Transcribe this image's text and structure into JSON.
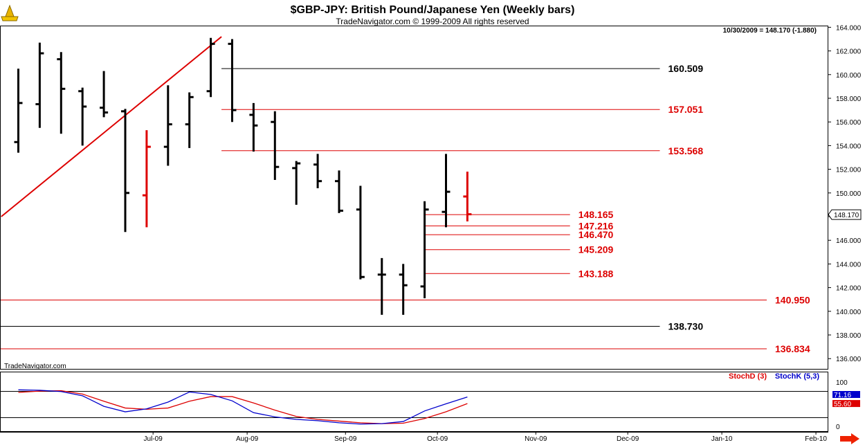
{
  "header": {
    "title": "$GBP-JPY:  British Pound/Japanese Yen  (Weekly bars)",
    "subtitle": "TradeNavigator.com © 1999-2009 All rights reserved",
    "date_readout": "10/30/2009 = 148.170 (-1.880)",
    "watermark": "TradeNavigator.com"
  },
  "colors": {
    "bar": "#000000",
    "highlight": "#dd0000",
    "stochD": "#dd0000",
    "stochK": "#0000cc",
    "grid": "#000000"
  },
  "chart_data": {
    "type": "ohlc",
    "price_axis": {
      "min": 135,
      "max": 165,
      "ticks": [
        "164.000",
        "162.000",
        "160.000",
        "158.000",
        "156.000",
        "154.000",
        "152.000",
        "150.000",
        "148.000",
        "146.000",
        "144.000",
        "142.000",
        "140.000",
        "138.000",
        "136.000"
      ],
      "tick_values": [
        164,
        162,
        160,
        158,
        156,
        154,
        152,
        150,
        148,
        146,
        144,
        142,
        140,
        138,
        136
      ]
    },
    "last_price_label": "148.170",
    "x_axis_labels": [
      {
        "label": "Jul-09",
        "week": 6.3
      },
      {
        "label": "Aug-09",
        "week": 10.7
      },
      {
        "label": "Sep-09",
        "week": 15.3
      },
      {
        "label": "Oct-09",
        "week": 19.6
      },
      {
        "label": "Nov-09",
        "week": 24.2
      },
      {
        "label": "Dec-09",
        "week": 28.5
      },
      {
        "label": "Jan-10",
        "week": 32.9
      },
      {
        "label": "Feb-10",
        "week": 37.3
      }
    ],
    "bars": [
      {
        "o": 154.3,
        "h": 160.5,
        "l": 153.4,
        "c": 157.6
      },
      {
        "o": 157.5,
        "h": 162.7,
        "l": 155.5,
        "c": 161.8
      },
      {
        "o": 161.3,
        "h": 161.9,
        "l": 155.0,
        "c": 158.8
      },
      {
        "o": 158.6,
        "h": 158.9,
        "l": 154.0,
        "c": 157.3
      },
      {
        "o": 157.2,
        "h": 160.3,
        "l": 156.4,
        "c": 156.8
      },
      {
        "o": 156.9,
        "h": 157.1,
        "l": 146.7,
        "c": 150.0
      },
      {
        "o": 149.8,
        "h": 155.3,
        "l": 147.1,
        "c": 153.9,
        "red": true
      },
      {
        "o": 153.9,
        "h": 159.1,
        "l": 152.3,
        "c": 155.8
      },
      {
        "o": 155.8,
        "h": 158.5,
        "l": 153.8,
        "c": 158.1
      },
      {
        "o": 158.6,
        "h": 163.1,
        "l": 158.1,
        "c": 162.6
      },
      {
        "o": 162.6,
        "h": 163.0,
        "l": 156.0,
        "c": 157.0
      },
      {
        "o": 156.6,
        "h": 157.6,
        "l": 153.5,
        "c": 155.7
      },
      {
        "o": 156.0,
        "h": 156.9,
        "l": 151.1,
        "c": 152.2
      },
      {
        "o": 152.1,
        "h": 152.7,
        "l": 149.0,
        "c": 152.5
      },
      {
        "o": 152.4,
        "h": 153.3,
        "l": 150.4,
        "c": 151.0
      },
      {
        "o": 151.0,
        "h": 151.9,
        "l": 148.3,
        "c": 148.5
      },
      {
        "o": 148.6,
        "h": 150.6,
        "l": 142.7,
        "c": 142.9
      },
      {
        "o": 143.1,
        "h": 144.5,
        "l": 139.7,
        "c": 143.1
      },
      {
        "o": 143.1,
        "h": 144.0,
        "l": 139.7,
        "c": 142.2
      },
      {
        "o": 142.1,
        "h": 149.3,
        "l": 141.1,
        "c": 148.6
      },
      {
        "o": 148.4,
        "h": 153.3,
        "l": 147.1,
        "c": 150.1
      },
      {
        "o": 149.7,
        "h": 151.8,
        "l": 147.6,
        "c": 148.2,
        "red": true
      }
    ],
    "trendline": {
      "from": {
        "week": -0.8,
        "price": 148.0
      },
      "to": {
        "week": 9.5,
        "price": 163.2
      }
    },
    "levels": [
      {
        "label": "160.509",
        "value": 160.509,
        "start_week": 9.5,
        "end_week": 30.0,
        "color": "#000000"
      },
      {
        "label": "157.051",
        "value": 157.051,
        "start_week": 9.5,
        "end_week": 30.0,
        "color": "#dd0000"
      },
      {
        "label": "153.568",
        "value": 153.568,
        "start_week": 9.5,
        "end_week": 30.0,
        "color": "#dd0000"
      },
      {
        "label": "148.165",
        "value": 148.165,
        "start_week": 19.0,
        "end_week": 25.8,
        "color": "#dd0000"
      },
      {
        "label": "147.216",
        "value": 147.216,
        "start_week": 19.0,
        "end_week": 25.8,
        "color": "#dd0000"
      },
      {
        "label": "146.470",
        "value": 146.47,
        "start_week": 19.0,
        "end_week": 25.8,
        "color": "#dd0000"
      },
      {
        "label": "145.209",
        "value": 145.209,
        "start_week": 19.0,
        "end_week": 25.8,
        "color": "#dd0000"
      },
      {
        "label": "143.188",
        "value": 143.188,
        "start_week": 19.0,
        "end_week": 25.8,
        "color": "#dd0000"
      },
      {
        "label": "140.950",
        "value": 140.95,
        "start_week": -1.0,
        "end_week": 35.0,
        "color": "#dd0000"
      },
      {
        "label": "138.730",
        "value": 138.73,
        "start_week": -1.0,
        "end_week": 30.0,
        "color": "#000000"
      },
      {
        "label": "136.834",
        "value": 136.834,
        "start_week": -1.0,
        "end_week": 35.0,
        "color": "#dd0000"
      }
    ],
    "stochastic": {
      "legend": [
        {
          "name": "StochD (3)",
          "color": "#dd0000"
        },
        {
          "name": "StochK (5,3)",
          "color": "#0000cc"
        }
      ],
      "axis_ticks": [
        "100",
        "0"
      ],
      "stochK": [
        88,
        87,
        84,
        74,
        49,
        36,
        43,
        59,
        83,
        77,
        62,
        34,
        24,
        18,
        15,
        10,
        7,
        8,
        13,
        38,
        55,
        71.16
      ],
      "stochD": [
        82,
        85,
        86,
        78,
        61,
        45,
        42,
        45,
        61,
        72,
        72,
        57,
        40,
        25,
        18,
        14,
        10,
        8,
        9,
        20,
        36,
        55.6
      ],
      "stochK_label": "71.16",
      "stochD_label": "55.60"
    }
  }
}
